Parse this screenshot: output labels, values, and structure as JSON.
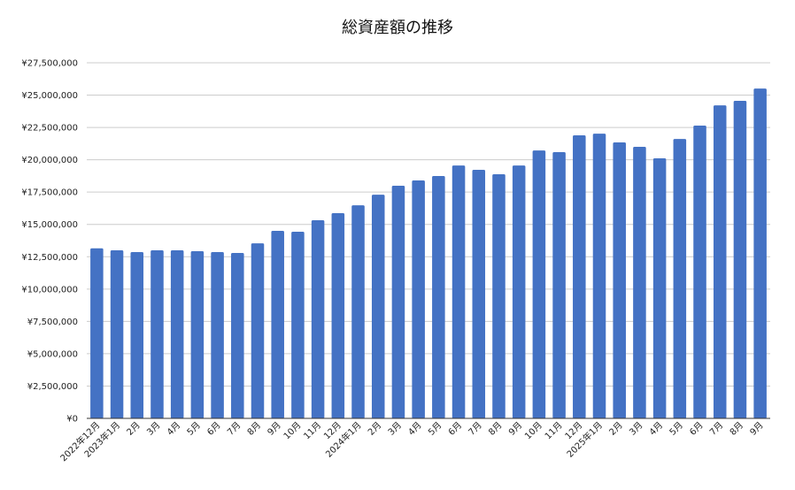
{
  "chart_data": {
    "type": "bar",
    "title": "総資産額の推移",
    "categories": [
      "2022年12月",
      "2023年1月",
      "2月",
      "3月",
      "4月",
      "5月",
      "6月",
      "7月",
      "8月",
      "9月",
      "10月",
      "11月",
      "12月",
      "2024年1月",
      "2月",
      "3月",
      "4月",
      "5月",
      "6月",
      "7月",
      "8月",
      "9月",
      "10月",
      "11月",
      "12月",
      "2025年1月",
      "2月",
      "3月",
      "4月",
      "5月",
      "6月",
      "7月",
      "8月",
      "9月"
    ],
    "values": [
      13150000,
      13000000,
      12860000,
      13000000,
      13000000,
      12930000,
      12860000,
      12790000,
      13540000,
      14500000,
      14430000,
      15320000,
      15870000,
      16480000,
      17300000,
      17990000,
      18400000,
      18740000,
      19560000,
      19220000,
      18880000,
      19560000,
      20720000,
      20590000,
      21890000,
      22020000,
      21340000,
      21000000,
      20110000,
      21610000,
      22640000,
      24210000,
      24560000,
      25510000
    ],
    "color": "#4472c4",
    "ylim": [
      0,
      27500000
    ],
    "yticks": [
      {
        "value": 0,
        "label": "¥0"
      },
      {
        "value": 2500000,
        "label": "¥2,500,000"
      },
      {
        "value": 5000000,
        "label": "¥5,000,000"
      },
      {
        "value": 7500000,
        "label": "¥7,500,000"
      },
      {
        "value": 10000000,
        "label": "¥10,000,000"
      },
      {
        "value": 12500000,
        "label": "¥12,500,000"
      },
      {
        "value": 15000000,
        "label": "¥15,000,000"
      },
      {
        "value": 17500000,
        "label": "¥17,500,000"
      },
      {
        "value": 20000000,
        "label": "¥20,000,000"
      },
      {
        "value": 22500000,
        "label": "¥22,500,000"
      },
      {
        "value": 25000000,
        "label": "¥25,000,000"
      },
      {
        "value": 27500000,
        "label": "¥27,500,000"
      }
    ],
    "grid": true
  }
}
